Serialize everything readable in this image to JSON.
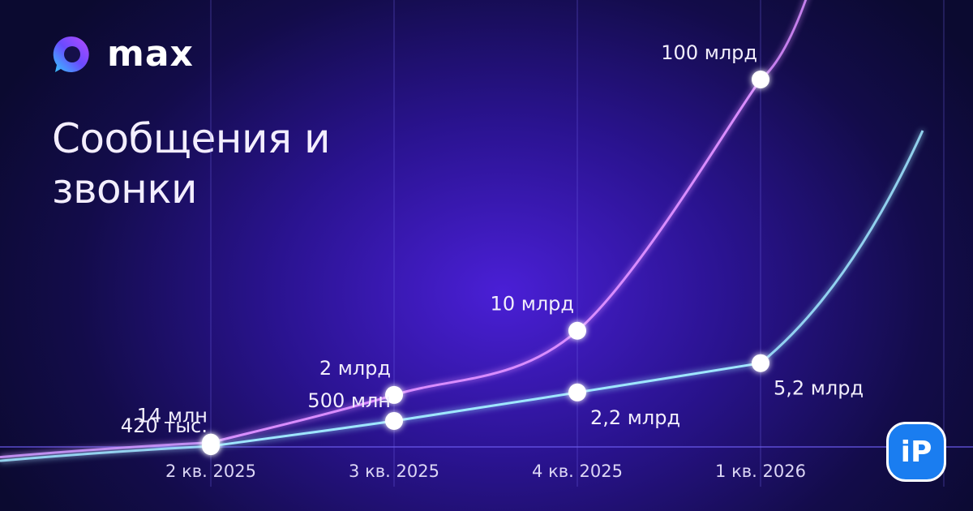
{
  "brand": "max",
  "watermark": "iP",
  "chart_data": {
    "type": "line",
    "title": "Сообщения и звонки",
    "categories": [
      "2 кв. 2025",
      "3 кв. 2025",
      "4 кв. 2025",
      "1 кв. 2026",
      null
    ],
    "yscale": "sqrt",
    "grid": true,
    "series": [
      {
        "color": "#d98cff",
        "values": [
          14000000,
          2000000000,
          10000000000,
          100000000000,
          null
        ],
        "value_labels": [
          "14 млн",
          "2 млрд",
          "10 млрд",
          "100 млрд",
          null
        ]
      },
      {
        "color": "#9fe6ff",
        "values": [
          420000,
          500000000,
          2200000000,
          5200000000,
          null
        ],
        "value_labels": [
          "420 тыс.",
          "500 млн",
          "2,2 млрд",
          "5,2 млрд",
          null
        ]
      }
    ]
  }
}
